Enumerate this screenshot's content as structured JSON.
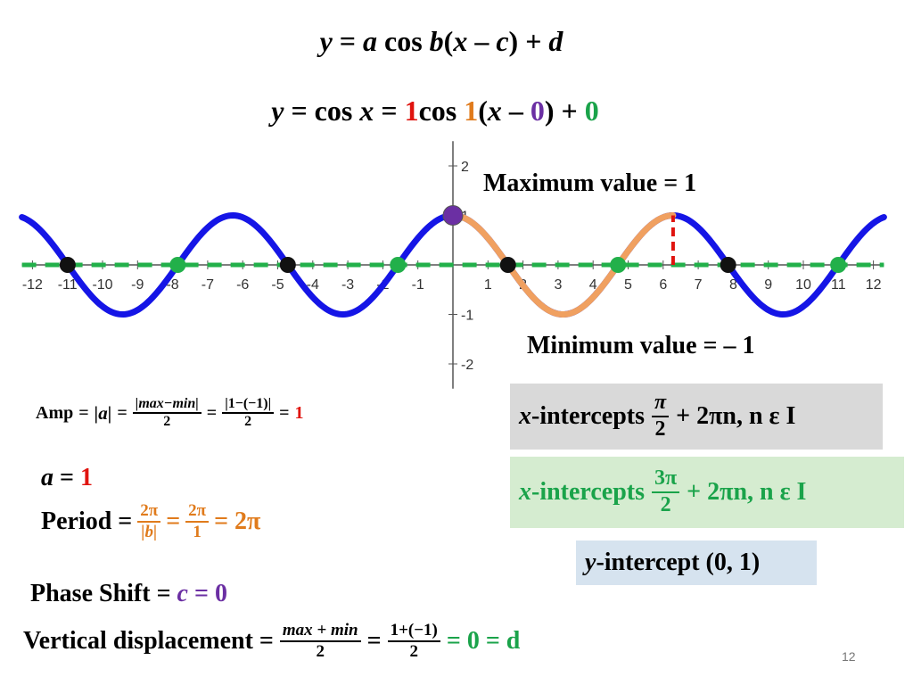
{
  "slide": {
    "page_number": "12",
    "general_form": {
      "y": "y",
      "eq": "=",
      "a": "a",
      "cos": "cos",
      "b": "b",
      "open": "(",
      "x": "x",
      "minus": "–",
      "c": "c",
      "close": ")",
      "plus": "+",
      "d": "d"
    },
    "specific_form": {
      "y": "y",
      "eq1": "= cos",
      "x1": "x",
      "eq2": "=",
      "a_val": "1",
      "cos": "cos",
      "b_val": "1",
      "open": "(",
      "x2": "x",
      "minus": "–",
      "c_val": "0",
      "close": ")",
      "plus": "+",
      "d_val": "0"
    },
    "max_label": "Maximum value = 1",
    "min_label": "Minimum value =  – 1",
    "amp": {
      "label": "Amp",
      "eq": "=",
      "abs_a": "|a|",
      "frac1_num": "|max−min|",
      "frac1_den": "2",
      "frac2_num": "|1−(−1)|",
      "frac2_den": "2",
      "result": "1"
    },
    "a_line": {
      "a": "a",
      "eq": "=",
      "value": "1"
    },
    "period": {
      "label": "Period =",
      "f1_num": "2π",
      "f1_den": "|b|",
      "eq": "=",
      "f2_num": "2π",
      "f2_den": "1",
      "result": "= 2π"
    },
    "phase": {
      "label": "Phase Shift =",
      "c": "c",
      "eq": "=",
      "value": "0"
    },
    "vertical": {
      "label": "Vertical displacement =",
      "f1_num": "max + min",
      "f1_den": "2",
      "eq": "=",
      "f2_num": "1+(−1)",
      "f2_den": "2",
      "result": "= 0 = d"
    },
    "x_int_1": {
      "x": "x",
      "label": "-intercepts",
      "num": "π",
      "den": "2",
      "tail": "+ 2πn, n ε I",
      "bg": "#d9d9d9"
    },
    "x_int_2": {
      "x": "x",
      "label": "-intercepts",
      "num": "3π",
      "den": "2",
      "tail": "+ 2πn, n ε I",
      "bg": "#d5ecd0"
    },
    "y_int": {
      "y": "y",
      "label": "-intercept  (0, 1)",
      "bg": "#d6e3ef"
    }
  },
  "chart_data": {
    "type": "line",
    "xlim": [
      -12.5,
      12.5
    ],
    "ylim": [
      -2.5,
      2.5
    ],
    "x_ticks": [
      -12,
      -11,
      -10,
      -9,
      -8,
      -7,
      -6,
      -5,
      -4,
      -3,
      -2,
      -1,
      1,
      2,
      3,
      4,
      5,
      6,
      7,
      8,
      9,
      10,
      11,
      12
    ],
    "x_tick_labels": [
      "-12",
      "-11",
      "-10",
      "-9",
      "-8",
      "-7",
      "-6",
      "-5",
      "-4",
      "-3",
      "-2",
      "-1",
      "1",
      "2",
      "3",
      "4",
      "5",
      "6",
      "7",
      "8",
      "9",
      "10",
      "11",
      "12"
    ],
    "y_ticks": [
      -2,
      -1,
      1,
      2
    ],
    "y_tick_labels": [
      "-2",
      "-1",
      "1",
      "2"
    ],
    "series": [
      {
        "function": "cos(x)",
        "x_range": [
          -12.3,
          12.3
        ],
        "color": "#1515e6",
        "style": "solid"
      },
      {
        "function": "cos(x)",
        "x_range": [
          0,
          6.283
        ],
        "color": "#f0a060",
        "style": "solid"
      },
      {
        "function": "0",
        "x_range": [
          -12.3,
          12.3
        ],
        "color": "#22b04a",
        "style": "dashed"
      }
    ],
    "black_points": [
      [
        -10.996,
        0
      ],
      [
        -4.712,
        0
      ],
      [
        1.571,
        0
      ],
      [
        7.854,
        0
      ]
    ],
    "green_points": [
      [
        -7.854,
        0
      ],
      [
        -1.571,
        0
      ],
      [
        4.712,
        0
      ],
      [
        10.996,
        0
      ]
    ],
    "max_point": [
      0,
      1
    ],
    "max_point_color": "#6b2fa3",
    "red_marker": {
      "x": 6.283,
      "y_range": [
        0,
        1
      ],
      "color": "#e0140f"
    }
  }
}
